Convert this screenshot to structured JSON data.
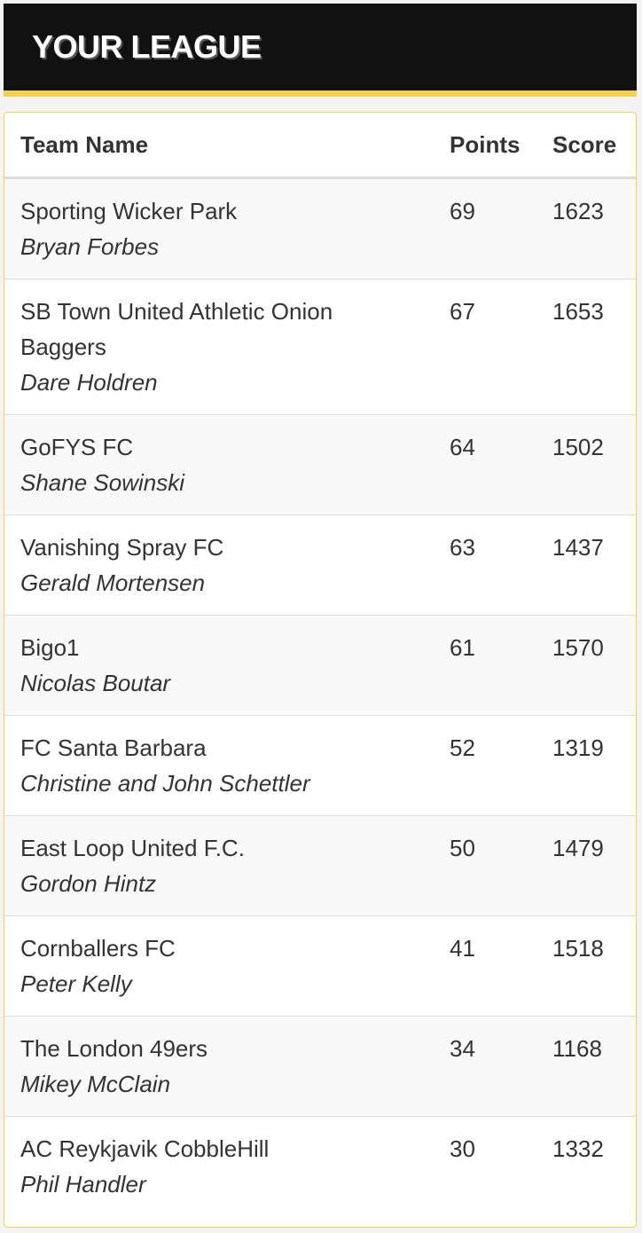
{
  "header": {
    "title": "YOUR LEAGUE"
  },
  "table": {
    "columns": [
      "Team Name",
      "Points",
      "Score"
    ],
    "rows": [
      {
        "team": "Sporting Wicker Park",
        "manager": "Bryan Forbes",
        "points": "69",
        "score": "1623"
      },
      {
        "team": "SB Town United Athletic Onion Baggers",
        "manager": "Dare Holdren",
        "points": "67",
        "score": "1653"
      },
      {
        "team": "GoFYS FC",
        "manager": "Shane Sowinski",
        "points": "64",
        "score": "1502"
      },
      {
        "team": "Vanishing Spray FC",
        "manager": "Gerald Mortensen",
        "points": "63",
        "score": "1437"
      },
      {
        "team": "Bigo1",
        "manager": "Nicolas Boutar",
        "points": "61",
        "score": "1570"
      },
      {
        "team": "FC Santa Barbara",
        "manager": "Christine and John Schettler",
        "points": "52",
        "score": "1319"
      },
      {
        "team": "East Loop United F.C.",
        "manager": "Gordon Hintz",
        "points": "50",
        "score": "1479"
      },
      {
        "team": "Cornballers FC",
        "manager": "Peter Kelly",
        "points": "41",
        "score": "1518"
      },
      {
        "team": "The London 49ers",
        "manager": "Mikey McClain",
        "points": "34",
        "score": "1168"
      },
      {
        "team": "AC Reykjavik CobbleHill",
        "manager": "Phil Handler",
        "points": "30",
        "score": "1332"
      }
    ]
  },
  "colors": {
    "accent": "#f5d04c",
    "header_bg": "#111111"
  }
}
